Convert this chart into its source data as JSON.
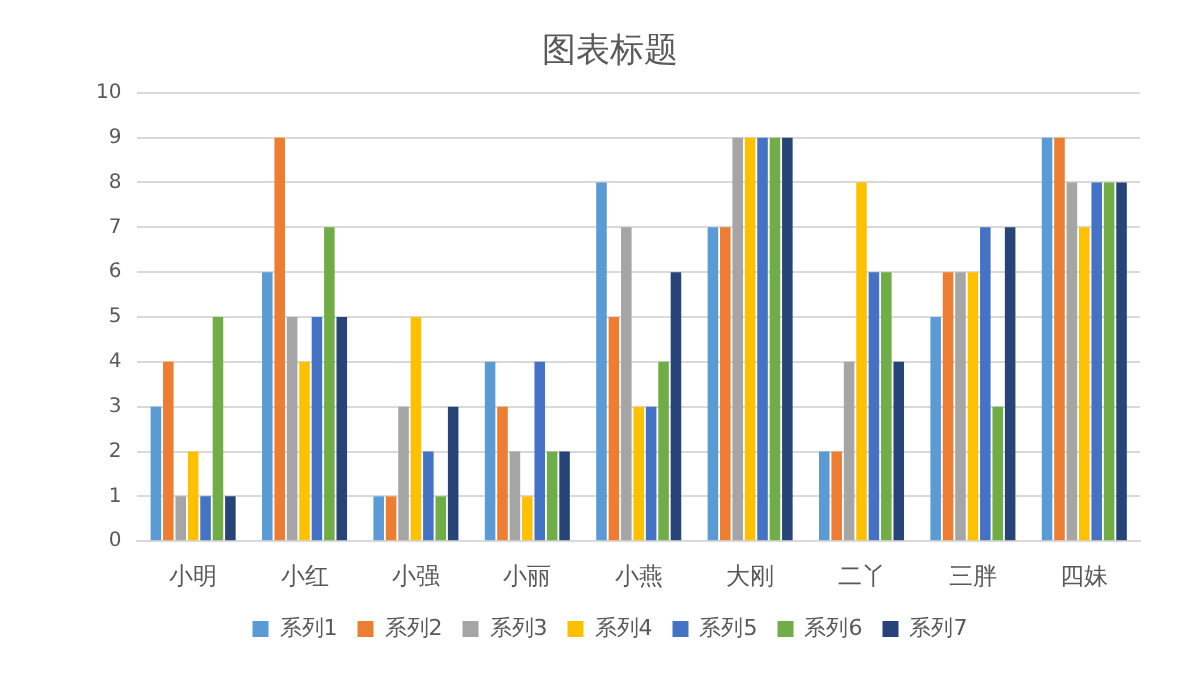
{
  "chart_data": {
    "type": "bar",
    "title": "图表标题",
    "categories": [
      "小明",
      "小红",
      "小强",
      "小丽",
      "小燕",
      "大刚",
      "二丫",
      "三胖",
      "四妹"
    ],
    "series": [
      {
        "name": "系列1",
        "color": "#5b9bd5",
        "values": [
          3,
          6,
          1,
          4,
          8,
          7,
          2,
          5,
          9
        ]
      },
      {
        "name": "系列2",
        "color": "#ed7d31",
        "values": [
          4,
          9,
          1,
          3,
          5,
          7,
          2,
          6,
          9
        ]
      },
      {
        "name": "系列3",
        "color": "#a5a5a5",
        "values": [
          1,
          5,
          3,
          2,
          7,
          9,
          4,
          6,
          8
        ]
      },
      {
        "name": "系列4",
        "color": "#ffc000",
        "values": [
          2,
          4,
          5,
          1,
          3,
          9,
          8,
          6,
          7
        ]
      },
      {
        "name": "系列5",
        "color": "#4472c4",
        "values": [
          1,
          5,
          2,
          4,
          3,
          9,
          6,
          7,
          8
        ]
      },
      {
        "name": "系列6",
        "color": "#70ad47",
        "values": [
          5,
          7,
          1,
          2,
          4,
          9,
          6,
          3,
          8
        ]
      },
      {
        "name": "系列7",
        "color": "#264478",
        "values": [
          1,
          5,
          3,
          2,
          6,
          9,
          4,
          7,
          8
        ]
      }
    ],
    "ylim": [
      0,
      10
    ],
    "yticks": [
      0,
      1,
      2,
      3,
      4,
      5,
      6,
      7,
      8,
      9,
      10
    ],
    "grid": "y",
    "legend": "bottom"
  }
}
